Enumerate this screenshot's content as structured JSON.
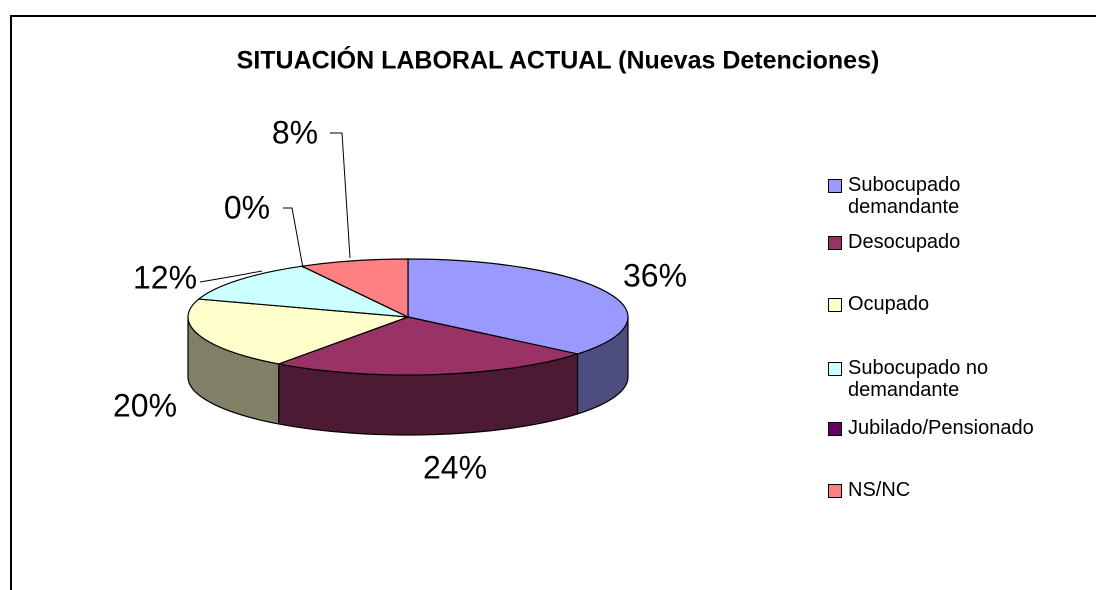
{
  "chart_data": {
    "type": "pie3d",
    "title": "SITUACIÓN LABORAL ACTUAL (Nuevas Detenciones)",
    "categories": [
      "Subocupado demandante",
      "Desocupado",
      "Ocupado",
      "Subocupado no demandante",
      "Jubilado/Pensionado",
      "NS/NC"
    ],
    "values": [
      36,
      24,
      20,
      12,
      0,
      8
    ],
    "value_labels": [
      "36%",
      "24%",
      "20%",
      "12%",
      "0%",
      "8%"
    ],
    "colors": [
      "#9999ff",
      "#993366",
      "#ffffcc",
      "#ccffff",
      "#660066",
      "#ff8080"
    ],
    "legend": "right"
  }
}
